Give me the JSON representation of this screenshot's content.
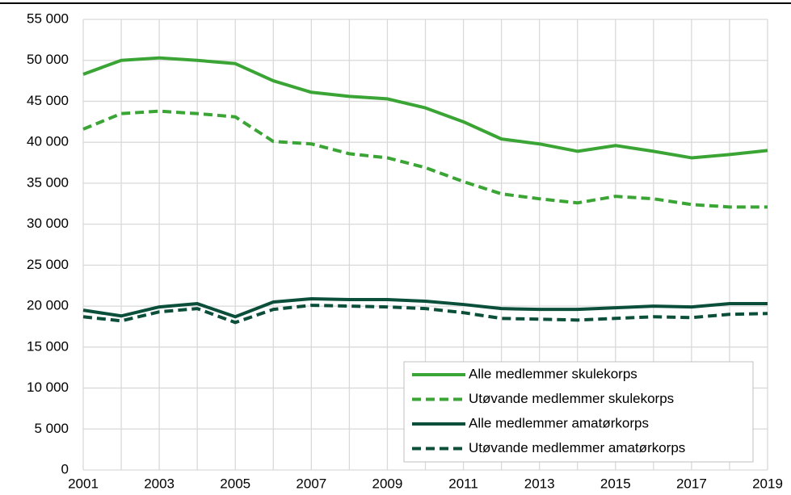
{
  "chart_data": {
    "type": "line",
    "x": [
      2001,
      2002,
      2003,
      2004,
      2005,
      2006,
      2007,
      2008,
      2009,
      2010,
      2011,
      2012,
      2013,
      2014,
      2015,
      2016,
      2017,
      2018,
      2019
    ],
    "xlim": [
      2001,
      2019
    ],
    "xticks": [
      2001,
      2003,
      2005,
      2007,
      2009,
      2011,
      2013,
      2015,
      2017,
      2019
    ],
    "ylim": [
      0,
      55000
    ],
    "yticks": [
      0,
      {
        "value": 5000,
        "label": "5 000"
      },
      {
        "value": 10000,
        "label": "10 000"
      },
      {
        "value": 15000,
        "label": "15 000"
      },
      {
        "value": 20000,
        "label": "20 000"
      },
      {
        "value": 25000,
        "label": "25 000"
      },
      {
        "value": 30000,
        "label": "30 000"
      },
      {
        "value": 35000,
        "label": "35 000"
      },
      {
        "value": 40000,
        "label": "40 000"
      },
      {
        "value": 45000,
        "label": "45 000"
      },
      {
        "value": 50000,
        "label": "50 000"
      },
      {
        "value": 55000,
        "label": "55 000"
      }
    ],
    "grid": true,
    "legend": "lower right",
    "series": [
      {
        "name": "Alle medlemmer skulekorps",
        "color": "#3aa535",
        "dashed": false,
        "values": [
          48300,
          50000,
          50300,
          50000,
          49600,
          47500,
          46100,
          45600,
          45300,
          44200,
          42500,
          40400,
          39800,
          38900,
          39600,
          38900,
          38100,
          38500,
          39000
        ]
      },
      {
        "name": "Utøvande medlemmer skulekorps",
        "color": "#3aa535",
        "dashed": true,
        "values": [
          41600,
          43500,
          43800,
          43500,
          43100,
          40100,
          39800,
          38600,
          38100,
          36900,
          35200,
          33700,
          33100,
          32600,
          33400,
          33100,
          32400,
          32100,
          32100
        ]
      },
      {
        "name": "Alle medlemmer amatørkorps",
        "color": "#0b4f3a",
        "dashed": false,
        "values": [
          19500,
          18800,
          19900,
          20300,
          18700,
          20500,
          20900,
          20800,
          20800,
          20600,
          20200,
          19700,
          19600,
          19600,
          19800,
          20000,
          19900,
          20300,
          20300
        ]
      },
      {
        "name": "Utøvande medlemmer amatørkorps",
        "color": "#0b4f3a",
        "dashed": true,
        "values": [
          18700,
          18200,
          19300,
          19700,
          18000,
          19600,
          20100,
          20000,
          19900,
          19700,
          19200,
          18500,
          18400,
          18300,
          18500,
          18700,
          18600,
          19000,
          19100
        ]
      }
    ]
  }
}
